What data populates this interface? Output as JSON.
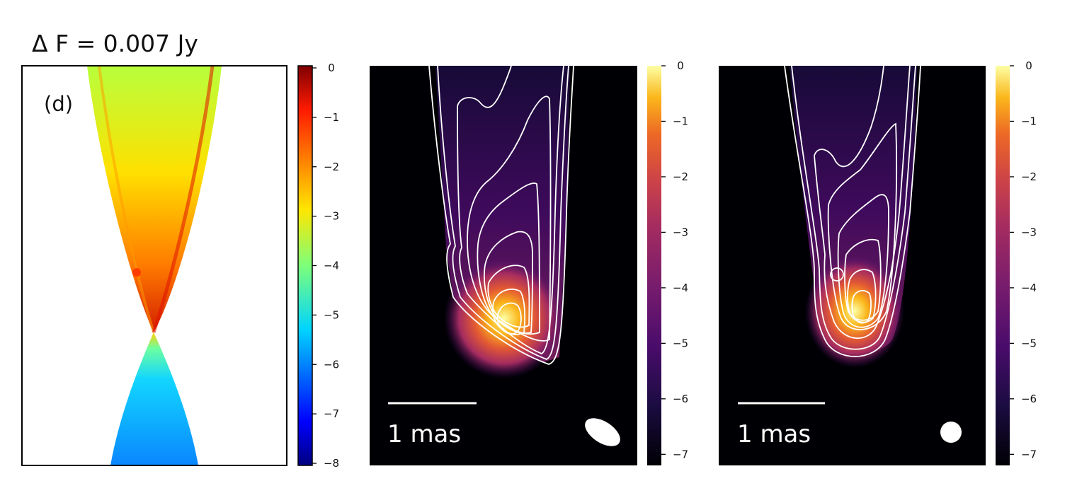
{
  "chart_data": [
    {
      "type": "heatmap",
      "panel": "left",
      "title": "Δ F = 0.007 Jy",
      "panel_label": "(d)",
      "colormap": "jet",
      "colorbar": {
        "ticks": [
          0,
          -1,
          -2,
          -3,
          -4,
          -5,
          -6,
          -7,
          -8
        ],
        "range": [
          -8,
          0
        ]
      },
      "axes_visible": false
    },
    {
      "type": "heatmap",
      "panel": "middle",
      "colormap": "inferno",
      "contours": "white",
      "scale_bar_label": "1 mas",
      "beam": "elliptical",
      "colorbar": {
        "ticks": [
          0,
          -1,
          -2,
          -3,
          -4,
          -5,
          -6,
          -7
        ],
        "range": [
          -7.2,
          0
        ]
      },
      "axes_visible": false
    },
    {
      "type": "heatmap",
      "panel": "right",
      "colormap": "inferno",
      "contours": "white",
      "scale_bar_label": "1 mas",
      "beam": "circular",
      "colorbar": {
        "ticks": [
          0,
          -1,
          -2,
          -3,
          -4,
          -5,
          -6,
          -7
        ],
        "range": [
          -7.2,
          0
        ]
      },
      "axes_visible": false
    }
  ],
  "colors": {
    "panel_background_dark": "#000004",
    "contour": "#ffffff",
    "frame": "#000000"
  }
}
